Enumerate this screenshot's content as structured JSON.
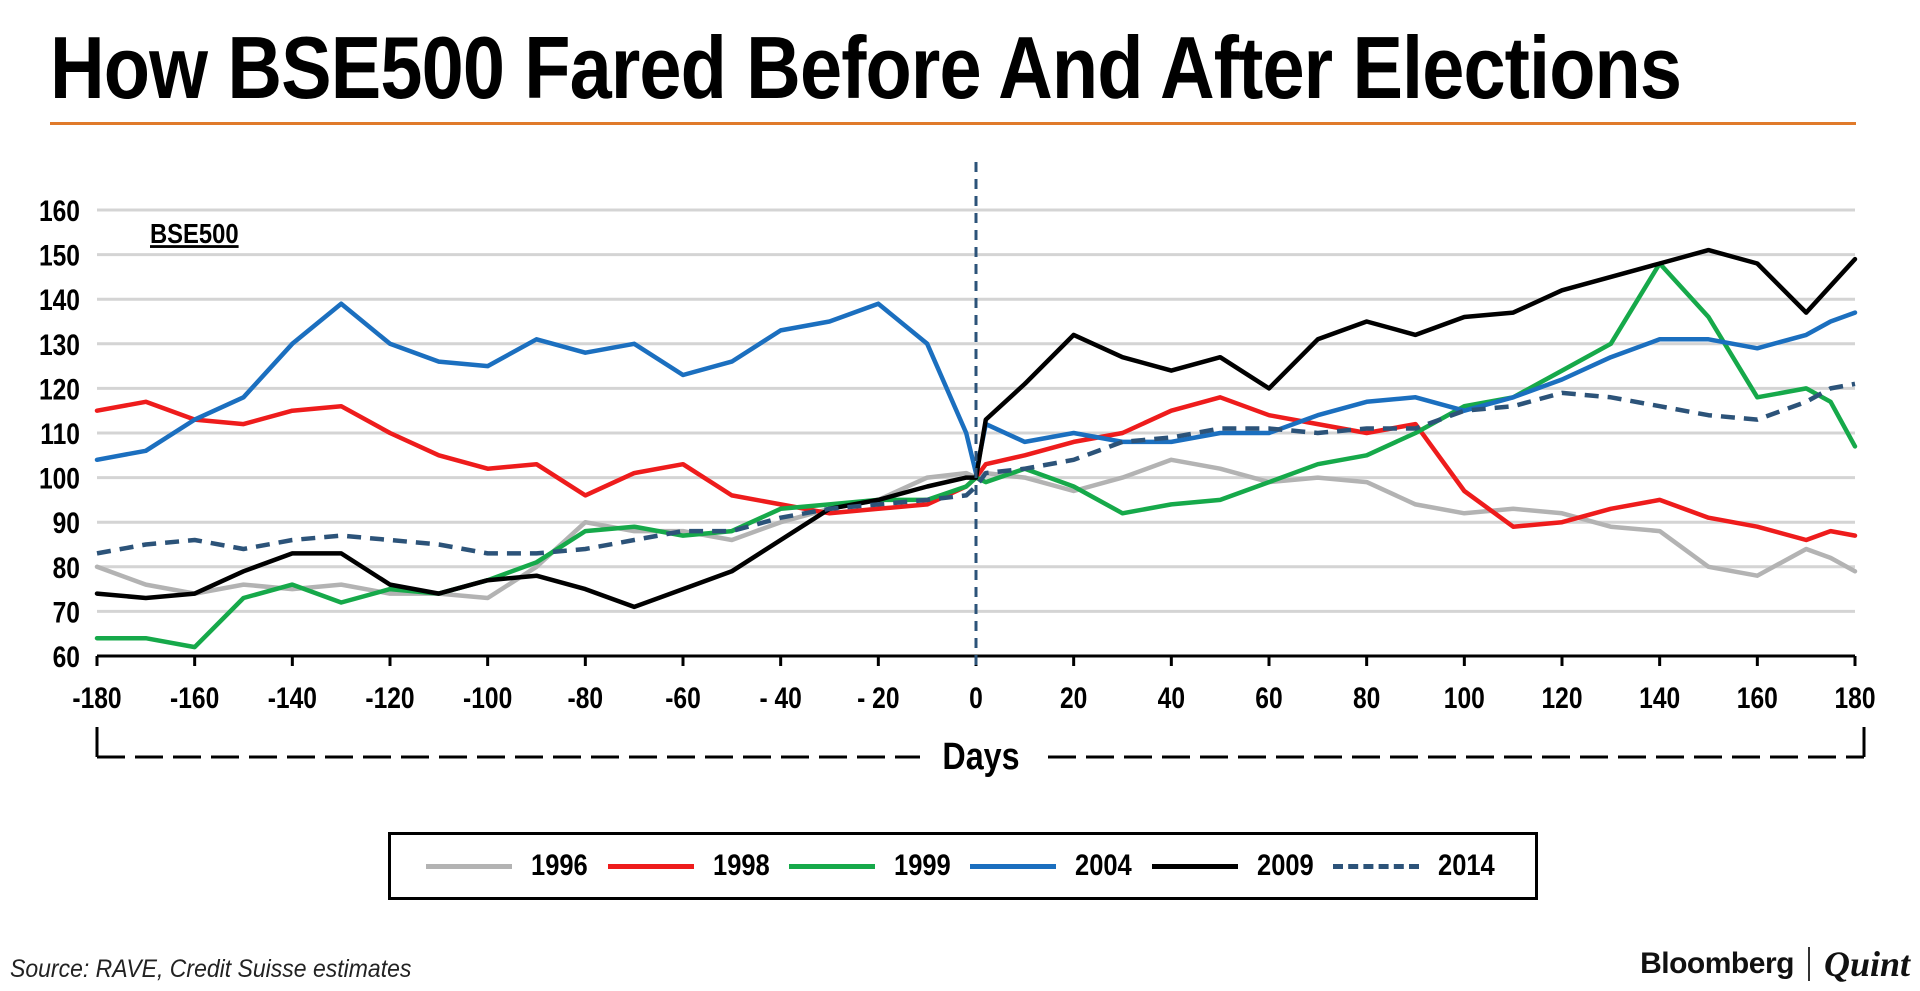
{
  "title": "How BSE500 Fared Before And After Elections",
  "source": "Source: RAVE, Credit Suisse estimates",
  "brand": {
    "name": "Bloomberg",
    "suffix": "Quint"
  },
  "colors": {
    "title_rule": "#e07a2a",
    "s1996": "#b3b3b3",
    "s1998": "#ee1c1c",
    "s1999": "#16a94a",
    "s2004": "#1b6fbf",
    "s2009": "#000000",
    "s2014": "#2c5379"
  },
  "chart_data": {
    "type": "line",
    "title": "How BSE500 Fared Before And After Elections",
    "inner_label": "BSE500",
    "xlabel": "Days",
    "ylabel": "",
    "xlim": [
      -180,
      180
    ],
    "ylim": [
      60,
      160
    ],
    "x_ticks": [
      -180,
      -160,
      -140,
      -120,
      -100,
      -80,
      -60,
      -40,
      -20,
      0,
      20,
      40,
      60,
      80,
      100,
      120,
      140,
      160,
      180
    ],
    "x_tick_labels": [
      "-180",
      "-160",
      "-140",
      "-120",
      "-100",
      "-80",
      "-60",
      "- 40",
      "- 20",
      "0",
      "20",
      "40",
      "60",
      "80",
      "100",
      "120",
      "140",
      "160",
      "180"
    ],
    "y_ticks": [
      60,
      70,
      80,
      90,
      100,
      110,
      120,
      130,
      140,
      150,
      160
    ],
    "grid": "horizontal",
    "reference_line": {
      "x": 0,
      "style": "dashed"
    },
    "legend_position": "bottom",
    "x": [
      -180,
      -170,
      -160,
      -150,
      -140,
      -130,
      -120,
      -110,
      -100,
      -90,
      -80,
      -70,
      -60,
      -50,
      -40,
      -30,
      -20,
      -10,
      -2,
      0,
      2,
      10,
      20,
      30,
      40,
      50,
      60,
      70,
      80,
      90,
      100,
      110,
      120,
      130,
      140,
      150,
      160,
      170,
      175,
      180
    ],
    "series": [
      {
        "name": "1996",
        "color": "#b3b3b3",
        "dashed": false,
        "values": [
          80,
          76,
          74,
          76,
          75,
          76,
          74,
          74,
          73,
          80,
          90,
          88,
          88,
          86,
          90,
          93,
          95,
          100,
          101,
          100,
          101,
          100,
          97,
          100,
          104,
          102,
          99,
          100,
          99,
          94,
          92,
          93,
          92,
          89,
          88,
          80,
          78,
          84,
          82,
          79
        ]
      },
      {
        "name": "1998",
        "color": "#ee1c1c",
        "dashed": false,
        "values": [
          115,
          117,
          113,
          112,
          115,
          116,
          110,
          105,
          102,
          103,
          96,
          101,
          103,
          96,
          94,
          92,
          93,
          94,
          98,
          100,
          103,
          105,
          108,
          110,
          115,
          118,
          114,
          112,
          110,
          112,
          97,
          89,
          90,
          93,
          95,
          91,
          89,
          86,
          88,
          87
        ]
      },
      {
        "name": "1999",
        "color": "#16a94a",
        "dashed": false,
        "values": [
          64,
          64,
          62,
          73,
          76,
          72,
          75,
          74,
          77,
          81,
          88,
          89,
          87,
          88,
          93,
          94,
          95,
          95,
          98,
          100,
          99,
          102,
          98,
          92,
          94,
          95,
          99,
          103,
          105,
          110,
          116,
          118,
          124,
          130,
          148,
          136,
          118,
          120,
          117,
          107
        ]
      },
      {
        "name": "2004",
        "color": "#1b6fbf",
        "dashed": false,
        "values": [
          104,
          106,
          113,
          118,
          130,
          139,
          130,
          126,
          125,
          131,
          128,
          130,
          123,
          126,
          133,
          135,
          139,
          130,
          110,
          101,
          112,
          108,
          110,
          108,
          108,
          110,
          110,
          114,
          117,
          118,
          115,
          118,
          122,
          127,
          131,
          131,
          129,
          132,
          135,
          137
        ]
      },
      {
        "name": "2009",
        "color": "#000000",
        "dashed": false,
        "values": [
          74,
          73,
          74,
          79,
          83,
          83,
          76,
          74,
          77,
          78,
          75,
          71,
          75,
          79,
          86,
          93,
          95,
          98,
          100,
          100,
          113,
          121,
          132,
          127,
          124,
          127,
          120,
          131,
          135,
          132,
          136,
          137,
          142,
          145,
          148,
          151,
          148,
          137,
          143,
          149
        ]
      },
      {
        "name": "2014",
        "color": "#2c5379",
        "dashed": true,
        "values": [
          83,
          85,
          86,
          84,
          86,
          87,
          86,
          85,
          83,
          83,
          84,
          86,
          88,
          88,
          91,
          93,
          94,
          95,
          96,
          98,
          101,
          102,
          104,
          108,
          109,
          111,
          111,
          110,
          111,
          111,
          115,
          116,
          119,
          118,
          116,
          114,
          113,
          117,
          120,
          121
        ]
      }
    ]
  }
}
